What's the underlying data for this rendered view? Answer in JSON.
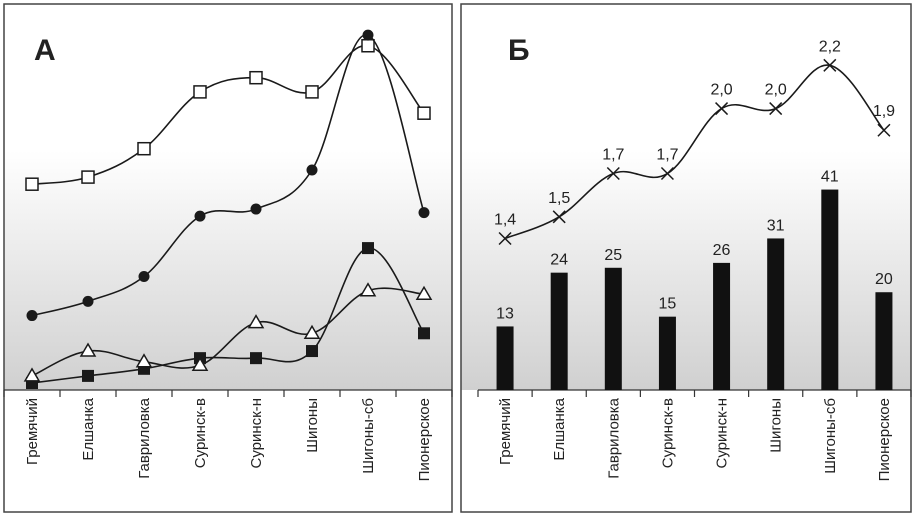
{
  "chart_data": [
    {
      "panel": "A",
      "type": "line",
      "title": "А",
      "categories": [
        "Гремячий",
        "Елшанка",
        "Гавриловка",
        "Суринск-в",
        "Суринск-н",
        "Шигоны",
        "Шигоны-сб",
        "Пионерское"
      ],
      "ylim": [
        0,
        100
      ],
      "grid": false,
      "series": [
        {
          "name": "open-square",
          "marker": "square-open",
          "values": [
            56,
            58,
            66,
            82,
            86,
            82,
            95,
            76
          ]
        },
        {
          "name": "filled-circle",
          "marker": "circle-filled",
          "values": [
            19,
            23,
            30,
            47,
            49,
            60,
            98,
            48
          ]
        },
        {
          "name": "filled-square",
          "marker": "square-filled",
          "values": [
            0,
            2,
            4,
            7,
            7,
            9,
            38,
            14
          ]
        },
        {
          "name": "open-triangle",
          "marker": "triangle-open",
          "values": [
            2,
            9,
            6,
            5,
            17,
            14,
            26,
            25
          ]
        }
      ]
    },
    {
      "panel": "B",
      "type": "bar",
      "title": "Б",
      "categories": [
        "Гремячий",
        "Елшанка",
        "Гавриловка",
        "Суринск-в",
        "Суринск-н",
        "Шигоны",
        "Шигоны-сб",
        "Пионерское"
      ],
      "values": [
        13,
        24,
        25,
        15,
        26,
        31,
        41,
        20
      ],
      "value_labels": [
        "13",
        "24",
        "25",
        "15",
        "26",
        "31",
        "41",
        "20"
      ],
      "ylim": [
        0,
        45
      ],
      "line_series": {
        "name": "ratio",
        "marker": "x",
        "values": [
          1.4,
          1.5,
          1.7,
          1.7,
          2.0,
          2.0,
          2.2,
          1.9
        ],
        "value_labels": [
          "1,4",
          "1,5",
          "1,7",
          "1,7",
          "2,0",
          "2,0",
          "2,2",
          "1,9"
        ],
        "ylim": [
          0.7,
          2.4
        ]
      },
      "grid": false
    }
  ],
  "colors": {
    "frame": "#444444",
    "ink": "#1a1a1a",
    "bar": "#111111",
    "gradient_top": "#ffffff",
    "gradient_bottom": "#d0d0d0"
  }
}
